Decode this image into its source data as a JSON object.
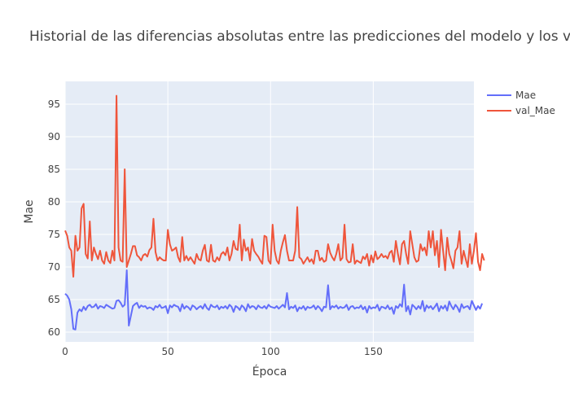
{
  "chart_data": {
    "type": "line",
    "title": "Historial de las diferencias absolutas entre las predicciones del modelo y los v",
    "xlabel": "Época",
    "ylabel": "Mae",
    "xlim": [
      0,
      199
    ],
    "ylim": [
      58.5,
      98.5
    ],
    "x_ticks": [
      0,
      50,
      100,
      150
    ],
    "y_ticks": [
      60,
      65,
      70,
      75,
      80,
      85,
      90,
      95
    ],
    "grid": true,
    "legend_position": "top-right",
    "colors": {
      "background": "#E5ECF6",
      "grid": "#ffffff",
      "Mae": "#636EFA",
      "val_Mae": "#EF553B"
    },
    "series": [
      {
        "name": "Mae",
        "values": [
          65.9,
          65.6,
          65.0,
          63.5,
          60.5,
          60.4,
          63.0,
          63.5,
          63.2,
          63.9,
          63.4,
          64.0,
          64.2,
          63.8,
          63.9,
          64.3,
          63.6,
          64.0,
          63.9,
          63.7,
          64.2,
          64.0,
          63.8,
          63.6,
          63.7,
          64.8,
          64.9,
          64.5,
          63.9,
          64.2,
          69.5,
          61.0,
          62.5,
          64.0,
          64.3,
          64.5,
          63.7,
          64.1,
          63.9,
          64.0,
          63.6,
          63.8,
          63.7,
          63.4,
          64.0,
          63.8,
          64.2,
          63.7,
          63.8,
          64.0,
          62.9,
          64.1,
          63.8,
          64.2,
          64.0,
          63.9,
          63.2,
          64.3,
          63.6,
          64.0,
          63.8,
          63.4,
          64.1,
          63.9,
          63.5,
          63.8,
          64.0,
          63.6,
          64.3,
          63.7,
          63.4,
          64.2,
          63.9,
          63.8,
          64.1,
          63.5,
          63.9,
          63.7,
          64.0,
          63.6,
          64.2,
          63.9,
          63.1,
          64.0,
          63.8,
          63.4,
          64.1,
          63.8,
          63.2,
          64.3,
          63.7,
          64.0,
          63.9,
          63.5,
          64.1,
          63.8,
          63.7,
          64.0,
          63.6,
          64.2,
          63.9,
          63.8,
          63.7,
          64.0,
          63.6,
          63.9,
          64.2,
          63.8,
          66.0,
          63.5,
          63.9,
          63.7,
          64.1,
          63.2,
          63.8,
          63.6,
          64.0,
          63.4,
          63.9,
          63.7,
          63.8,
          64.1,
          63.5,
          64.0,
          63.7,
          63.2,
          63.9,
          63.8,
          67.2,
          63.5,
          64.0,
          63.8,
          64.1,
          63.6,
          63.9,
          63.7,
          63.8,
          64.2,
          63.4,
          63.9,
          64.0,
          63.6,
          63.8,
          63.7,
          64.1,
          63.5,
          63.9,
          63.0,
          64.0,
          63.6,
          63.8,
          63.7,
          64.2,
          63.3,
          63.9,
          63.8,
          63.6,
          64.1,
          63.5,
          63.8,
          62.8,
          64.0,
          63.7,
          64.3,
          63.9,
          67.3,
          63.2,
          64.0,
          62.7,
          64.2,
          63.9,
          63.5,
          64.0,
          63.6,
          64.8,
          63.2,
          64.1,
          63.7,
          64.0,
          63.5,
          63.9,
          64.4,
          63.2,
          64.0,
          63.6,
          64.1,
          63.3,
          64.7,
          64.0,
          63.5,
          64.2,
          63.8,
          63.1,
          64.3,
          63.7,
          63.9,
          64.0,
          63.5,
          64.8,
          64.1,
          63.4,
          64.0,
          63.6,
          64.4
        ]
      },
      {
        "name": "val_Mae",
        "values": [
          75.6,
          74.8,
          73.0,
          72.5,
          68.5,
          74.8,
          72.5,
          73.0,
          79.0,
          79.7,
          72.0,
          71.3,
          77.0,
          71.0,
          73.0,
          72.0,
          71.2,
          72.5,
          71.0,
          70.5,
          72.3,
          71.0,
          70.6,
          72.5,
          71.0,
          96.3,
          73.0,
          71.0,
          70.8,
          85.0,
          70.0,
          71.0,
          72.0,
          73.2,
          73.2,
          71.8,
          71.5,
          71.0,
          71.8,
          72.0,
          71.6,
          72.6,
          73.0,
          77.4,
          72.3,
          71.0,
          71.5,
          71.2,
          71.0,
          71.0,
          75.7,
          73.5,
          72.5,
          72.7,
          73.0,
          71.5,
          70.8,
          74.6,
          71.0,
          71.7,
          71.0,
          71.5,
          71.0,
          70.5,
          72.0,
          71.2,
          71.0,
          72.5,
          73.4,
          71.0,
          70.8,
          73.4,
          71.0,
          70.8,
          71.5,
          71.0,
          72.0,
          72.3,
          71.8,
          73.0,
          71.0,
          72.0,
          74.0,
          72.8,
          72.6,
          76.5,
          71.0,
          74.2,
          72.5,
          73.0,
          71.0,
          74.3,
          72.5,
          72.0,
          71.6,
          71.0,
          70.5,
          74.8,
          74.6,
          71.0,
          70.5,
          76.5,
          72.5,
          71.0,
          70.5,
          72.5,
          73.8,
          74.9,
          72.5,
          71.0,
          71.0,
          71.0,
          72.5,
          79.2,
          71.5,
          71.2,
          70.5,
          71.0,
          71.5,
          70.8,
          71.2,
          70.5,
          72.5,
          72.5,
          71.0,
          71.4,
          70.8,
          71.0,
          73.5,
          72.2,
          71.5,
          71.0,
          72.0,
          73.5,
          71.0,
          71.4,
          76.5,
          71.2,
          70.7,
          70.8,
          73.5,
          70.5,
          71.0,
          70.8,
          70.6,
          71.6,
          71.2,
          72.0,
          70.2,
          71.8,
          70.7,
          72.4,
          71.2,
          71.5,
          72.0,
          71.5,
          71.7,
          71.3,
          72.2,
          72.5,
          70.8,
          74.0,
          72.0,
          70.4,
          73.5,
          74.0,
          72.0,
          70.5,
          75.5,
          73.5,
          71.5,
          70.8,
          71.0,
          73.5,
          72.5,
          73.0,
          71.8,
          75.5,
          73.0,
          75.5,
          71.8,
          74.0,
          70.0,
          75.7,
          72.5,
          69.5,
          74.5,
          72.0,
          71.0,
          69.8,
          72.5,
          73.0,
          75.5,
          70.5,
          72.5,
          71.2,
          70.0,
          73.5,
          70.5,
          72.5,
          75.2,
          70.8,
          69.5,
          72.0,
          71.0
        ]
      }
    ]
  }
}
